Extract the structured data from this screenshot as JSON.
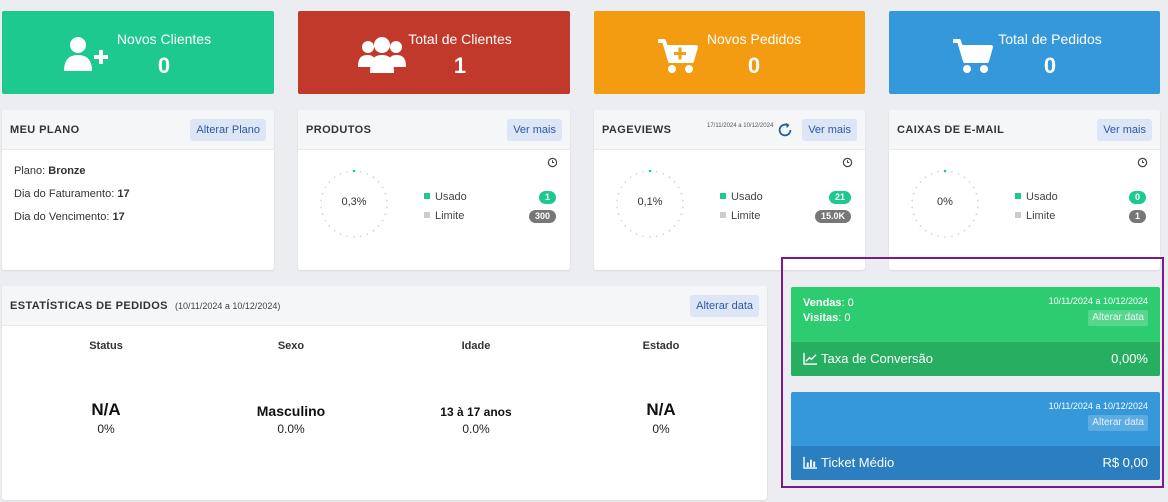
{
  "stats": [
    {
      "label": "Novos Clientes",
      "value": "0",
      "color": "#1ec990",
      "icon": "user-plus-icon"
    },
    {
      "label": "Total de Clientes",
      "value": "1",
      "color": "#c0392b",
      "icon": "users-icon"
    },
    {
      "label": "Novos Pedidos",
      "value": "0",
      "color": "#f39c12",
      "icon": "cart-plus-icon"
    },
    {
      "label": "Total de Pedidos",
      "value": "0",
      "color": "#3498db",
      "icon": "cart-icon"
    }
  ],
  "plan": {
    "title": "MEU PLANO",
    "button": "Alterar Plano",
    "plan_label": "Plano:",
    "plan_value": "Bronze",
    "billing_label": "Dia do Faturamento:",
    "billing_value": "17",
    "due_label": "Dia do Vencimento:",
    "due_value": "17"
  },
  "products": {
    "title": "PRODUTOS",
    "button": "Ver mais",
    "percent": "0,3%",
    "used_label": "Usado",
    "used_value": "1",
    "limit_label": "Limite",
    "limit_value": "300"
  },
  "pageviews": {
    "title": "PAGEVIEWS",
    "date_range": "17/11/2024 a 10/12/2024",
    "button": "Ver mais",
    "percent": "0,1%",
    "used_label": "Usado",
    "used_value": "21",
    "limit_label": "Limite",
    "limit_value": "15.0K"
  },
  "email": {
    "title": "CAIXAS DE E-MAIL",
    "button": "Ver mais",
    "percent": "0%",
    "used_label": "Usado",
    "used_value": "0",
    "limit_label": "Limite",
    "limit_value": "1"
  },
  "order_stats": {
    "title": "ESTATÍSTICAS DE PEDIDOS",
    "date_range": "(10/11/2024 a 10/12/2024)",
    "button": "Alterar data",
    "columns": [
      {
        "header": "Status",
        "value": "N/A",
        "percent": "0%"
      },
      {
        "header": "Sexo",
        "value": "Masculino",
        "percent": "0.0%"
      },
      {
        "header": "Idade",
        "value": "13 à 17 anos",
        "percent": "0.0%"
      },
      {
        "header": "Estado",
        "value": "N/A",
        "percent": "0%"
      }
    ]
  },
  "conversion": {
    "sales_label": "Vendas",
    "sales_value": ": 0",
    "visits_label": "Visitas",
    "visits_value": ": 0",
    "date_range": "10/11/2024 a 10/12/2024",
    "button": "Alterar data",
    "footer_label": "Taxa de Conversão",
    "footer_value": "0,00%"
  },
  "ticket": {
    "date_range": "10/11/2024 a 10/12/2024",
    "button": "Alterar data",
    "footer_label": "Ticket Médio",
    "footer_value": "R$ 0,00"
  },
  "colors": {
    "green": "#1ec990",
    "red": "#c0392b",
    "orange": "#f39c12",
    "blue": "#3498db",
    "conv_green": "#2ecc71",
    "conv_green_dark": "#27ae60",
    "ticket_blue": "#3498db",
    "ticket_blue_dark": "#2b7fc0",
    "highlight": "#7b1a8a"
  }
}
